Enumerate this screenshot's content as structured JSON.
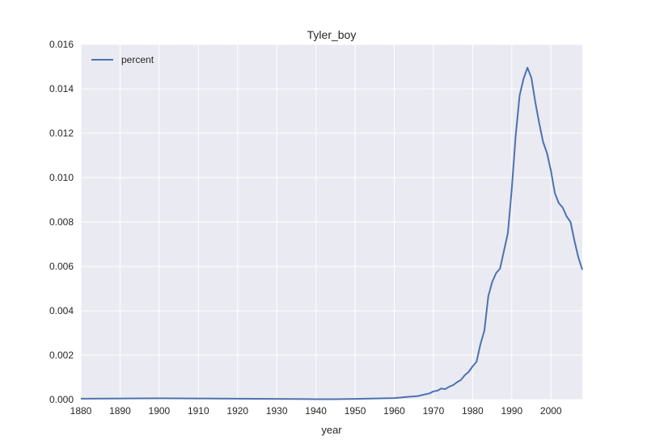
{
  "chart_data": {
    "type": "line",
    "title": "Tyler_boy",
    "xlabel": "year",
    "ylabel": "",
    "xlim": [
      1880,
      2008
    ],
    "ylim": [
      0,
      0.016
    ],
    "grid": true,
    "legend_position": "top-left",
    "x_ticks": [
      "1880",
      "1890",
      "1900",
      "1910",
      "1920",
      "1930",
      "1940",
      "1950",
      "1960",
      "1970",
      "1980",
      "1990",
      "2000"
    ],
    "y_ticks": [
      "0.000",
      "0.002",
      "0.004",
      "0.006",
      "0.008",
      "0.010",
      "0.012",
      "0.014",
      "0.016"
    ],
    "colors": {
      "line": "#4c72b0",
      "plot_bg": "#eaeaf2",
      "grid": "#ffffff"
    },
    "series": [
      {
        "name": "percent",
        "points": [
          [
            1880,
            4e-05
          ],
          [
            1890,
            5e-05
          ],
          [
            1900,
            6e-05
          ],
          [
            1910,
            5e-05
          ],
          [
            1920,
            4e-05
          ],
          [
            1930,
            3e-05
          ],
          [
            1940,
            2e-05
          ],
          [
            1945,
            2e-05
          ],
          [
            1950,
            3e-05
          ],
          [
            1955,
            5e-05
          ],
          [
            1960,
            7e-05
          ],
          [
            1962,
            0.0001
          ],
          [
            1964,
            0.00013
          ],
          [
            1966,
            0.00016
          ],
          [
            1968,
            0.00024
          ],
          [
            1969,
            0.00028
          ],
          [
            1970,
            0.00037
          ],
          [
            1971,
            0.0004
          ],
          [
            1972,
            0.0005
          ],
          [
            1973,
            0.00047
          ],
          [
            1974,
            0.00058
          ],
          [
            1975,
            0.00065
          ],
          [
            1976,
            0.00078
          ],
          [
            1977,
            0.00088
          ],
          [
            1978,
            0.0011
          ],
          [
            1979,
            0.00125
          ],
          [
            1980,
            0.0015
          ],
          [
            1981,
            0.0017
          ],
          [
            1982,
            0.0025
          ],
          [
            1983,
            0.0031
          ],
          [
            1984,
            0.00465
          ],
          [
            1985,
            0.0053
          ],
          [
            1986,
            0.0057
          ],
          [
            1987,
            0.0059
          ],
          [
            1988,
            0.0067
          ],
          [
            1989,
            0.0075
          ],
          [
            1990,
            0.0095
          ],
          [
            1991,
            0.0119
          ],
          [
            1992,
            0.0137
          ],
          [
            1993,
            0.01445
          ],
          [
            1994,
            0.01495
          ],
          [
            1995,
            0.0145
          ],
          [
            1996,
            0.0134
          ],
          [
            1997,
            0.01245
          ],
          [
            1998,
            0.0116
          ],
          [
            1999,
            0.0111
          ],
          [
            2000,
            0.0103
          ],
          [
            2001,
            0.0093
          ],
          [
            2002,
            0.00885
          ],
          [
            2003,
            0.00865
          ],
          [
            2004,
            0.00825
          ],
          [
            2005,
            0.008
          ],
          [
            2006,
            0.00715
          ],
          [
            2007,
            0.0064
          ],
          [
            2008,
            0.00585
          ]
        ]
      }
    ]
  }
}
